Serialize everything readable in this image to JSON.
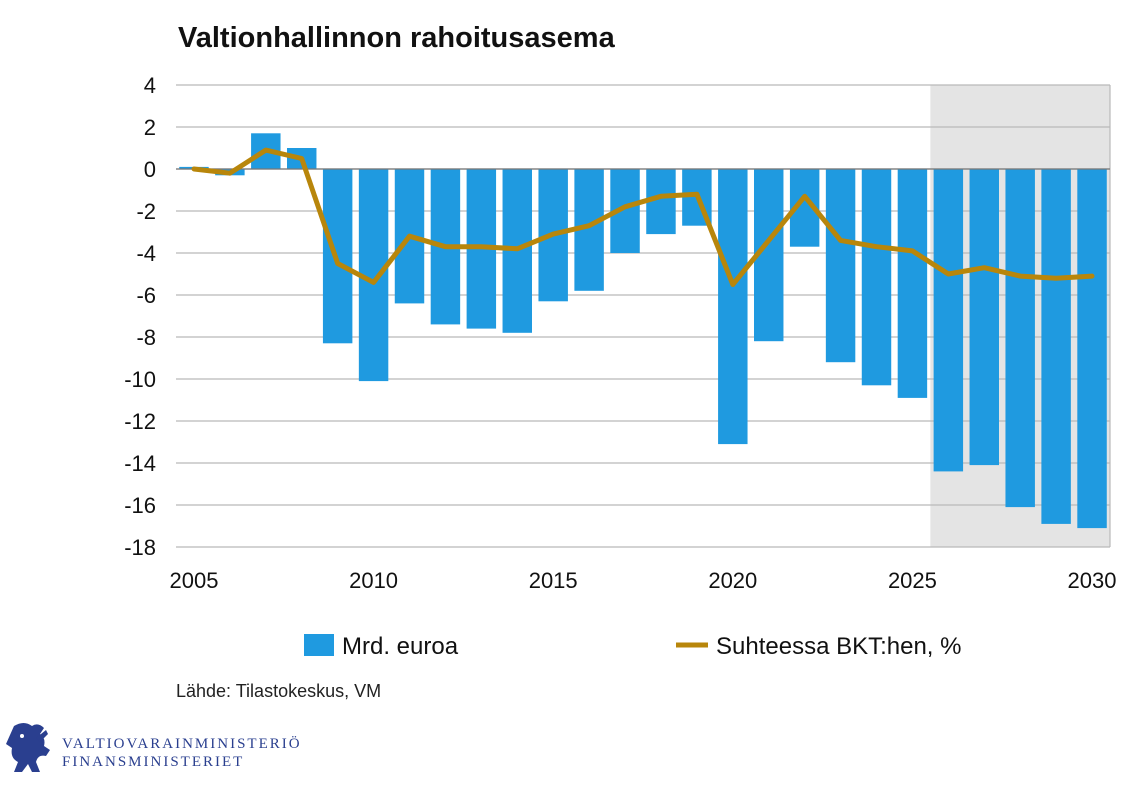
{
  "chart_data": {
    "type": "bar",
    "title": "Valtionhallinnon rahoitusasema",
    "x": [
      2005,
      2006,
      2007,
      2008,
      2009,
      2010,
      2011,
      2012,
      2013,
      2014,
      2015,
      2016,
      2017,
      2018,
      2019,
      2020,
      2021,
      2022,
      2023,
      2024,
      2025,
      2026,
      2027,
      2028,
      2029,
      2030
    ],
    "x_tick_labels": [
      "2005",
      "2010",
      "2015",
      "2020",
      "2025",
      "2030"
    ],
    "x_ticks": [
      2005,
      2010,
      2015,
      2020,
      2025,
      2030
    ],
    "y_ticks": [
      4,
      2,
      0,
      -2,
      -4,
      -6,
      -8,
      -10,
      -12,
      -14,
      -16,
      -18
    ],
    "y_tick_labels": [
      "4",
      "2",
      "0",
      "-2",
      "-4",
      "-6",
      "-8",
      "-10",
      "-12",
      "-14",
      "-16",
      "-18"
    ],
    "ylim": [
      -18,
      4
    ],
    "xlim": [
      2004.5,
      2030.5
    ],
    "forecast_shading_from": 2025.5,
    "grid": true,
    "series": [
      {
        "name": "Mrd. euroa",
        "type": "bar",
        "color": "#1f9ae0",
        "values": [
          0.1,
          -0.3,
          1.7,
          1.0,
          -8.3,
          -10.1,
          -6.4,
          -7.4,
          -7.6,
          -7.8,
          -6.3,
          -5.8,
          -4.0,
          -3.1,
          -2.7,
          -13.1,
          -8.2,
          -3.7,
          -9.2,
          -10.3,
          -10.9,
          -14.4,
          -14.1,
          -16.1,
          -16.9,
          -17.1
        ]
      },
      {
        "name": "Suhteessa BKT:hen, %",
        "type": "line",
        "color": "#b8860b",
        "values": [
          0.0,
          -0.2,
          0.9,
          0.5,
          -4.5,
          -5.4,
          -3.2,
          -3.7,
          -3.7,
          -3.8,
          -3.1,
          -2.7,
          -1.8,
          -1.3,
          -1.2,
          -5.5,
          -3.4,
          -1.3,
          -3.4,
          -3.7,
          -3.9,
          -5.0,
          -4.7,
          -5.1,
          -5.2,
          -5.1
        ]
      }
    ]
  },
  "source": "Lähde: Tilastokeskus,  VM",
  "logo": {
    "line1": "VALTIOVARAINMINISTERIÖ",
    "line2": "FINANSMINISTERIET"
  }
}
